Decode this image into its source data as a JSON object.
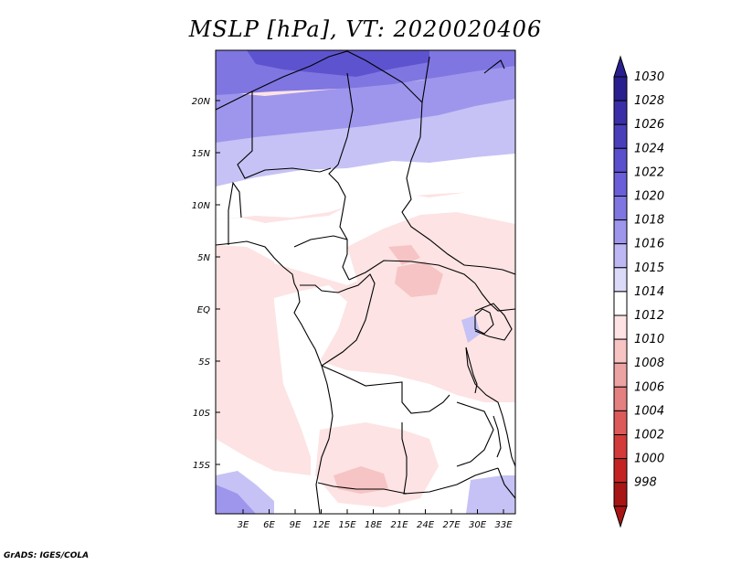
{
  "title": "MSLP [hPa], VT: 2020020406",
  "credit": "GrADS: IGES/COLA",
  "map": {
    "lat_labels": [
      "20N",
      "15N",
      "10N",
      "5N",
      "EQ",
      "5S",
      "10S",
      "15S"
    ],
    "lon_labels": [
      "3E",
      "6E",
      "9E",
      "12E",
      "15E",
      "18E",
      "21E",
      "24E",
      "27E",
      "30E",
      "33E"
    ]
  },
  "colorbar": {
    "labels": [
      "1030",
      "1028",
      "1026",
      "1024",
      "1022",
      "1020",
      "1018",
      "1016",
      "1015",
      "1014",
      "1012",
      "1010",
      "1008",
      "1006",
      "1004",
      "1002",
      "1000",
      "998"
    ],
    "colors": [
      "#2a1f8f",
      "#3a2fa6",
      "#4a3fbb",
      "#5a4fcc",
      "#6a5fd8",
      "#7f76e2",
      "#9e96ec",
      "#bdb8f3",
      "#dcdaf9",
      "#ffffff",
      "#fde3e3",
      "#f7c3c3",
      "#eea3a3",
      "#e58080",
      "#dc5a5a",
      "#d33a3a",
      "#c42323",
      "#a81515"
    ],
    "field_colors": {
      "very_high": "#5e53cf",
      "high": "#7f76e2",
      "mid_high": "#9e96ec",
      "low_high": "#c6c2f5",
      "neutral": "#ffffff",
      "low": "#fde3e3",
      "lower": "#f6c4c4"
    }
  }
}
